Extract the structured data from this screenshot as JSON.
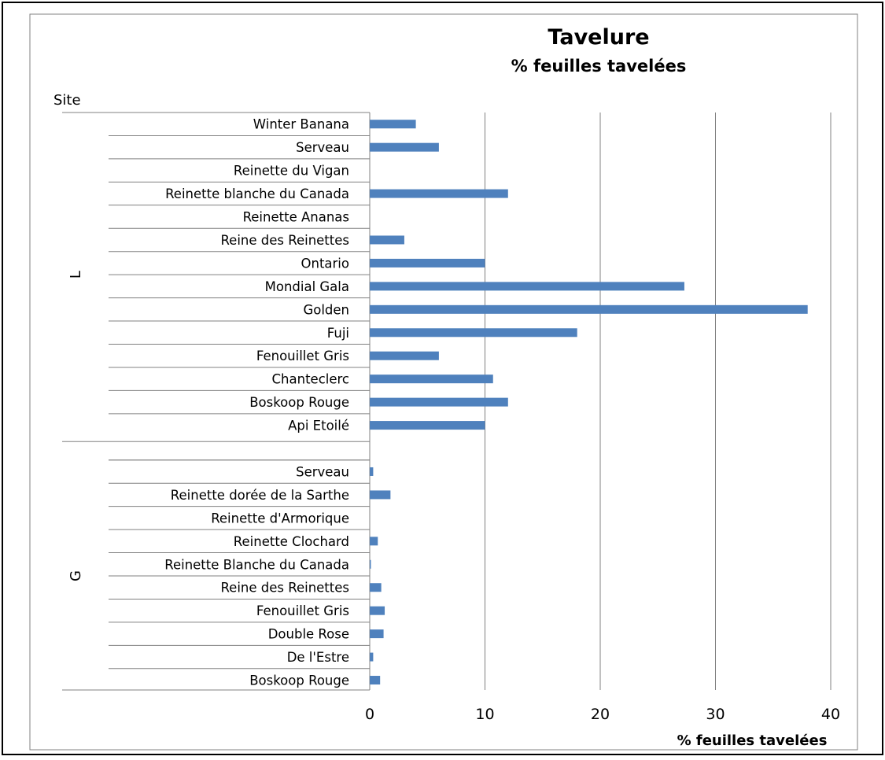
{
  "chart_data": {
    "type": "bar",
    "orientation": "horizontal",
    "title": "Tavelure",
    "subtitle": "% feuilles tavelées",
    "xlabel": "% feuilles tavelées",
    "group_header": "Site",
    "xlim": [
      0,
      40
    ],
    "x_ticks": [
      "0",
      "10",
      "20",
      "30",
      "40"
    ],
    "grid": "vertical",
    "bar_color": "#4f81bd",
    "groups": [
      {
        "name": "L",
        "categories": [
          "Winter Banana",
          "Serveau",
          "Reinette du Vigan",
          "Reinette blanche du Canada",
          "Reinette Ananas",
          "Reine des Reinettes",
          "Ontario",
          "Mondial Gala",
          "Golden",
          "Fuji",
          "Fenouillet Gris",
          "Chanteclerc",
          "Boskoop Rouge",
          "Api Etoilé"
        ],
        "values": [
          4,
          6,
          0,
          12,
          0,
          3,
          10,
          27.3,
          38,
          18,
          6,
          10.7,
          12,
          10
        ]
      },
      {
        "name": "G",
        "categories": [
          "Serveau",
          "Reinette dorée de la Sarthe",
          "Reinette d'Armorique",
          "Reinette Clochard",
          "Reinette Blanche du Canada",
          "Reine des Reinettes",
          "Fenouillet Gris",
          "Double Rose",
          "De l'Estre",
          "Boskoop Rouge"
        ],
        "values": [
          0.3,
          1.8,
          0,
          0.7,
          0.1,
          1,
          1.3,
          1.2,
          0.3,
          0.9
        ]
      }
    ]
  }
}
